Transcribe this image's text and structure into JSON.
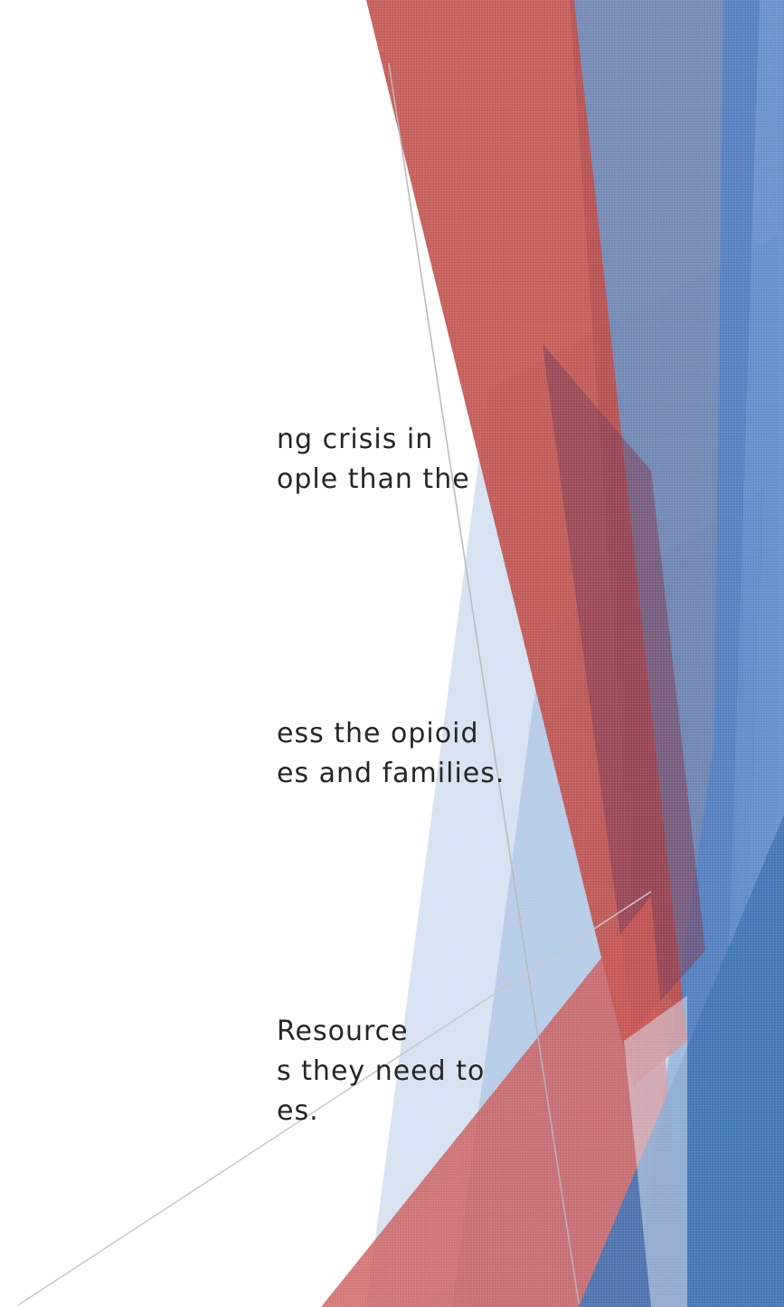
{
  "paragraphs": [
    {
      "lines": [
        "ng crisis in",
        "ople than the"
      ]
    },
    {
      "lines": [
        "ess the opioid",
        "es and families."
      ]
    },
    {
      "lines": [
        " Resource",
        "s they need to",
        "es."
      ]
    }
  ],
  "decor_colors": {
    "red": "#c0504d",
    "red_dark": "#8b3a46",
    "blue": "#4f81bd",
    "blue_light": "#b8cce4",
    "slate": "#6b7fa8",
    "line_gray": "#b7b7b7"
  }
}
